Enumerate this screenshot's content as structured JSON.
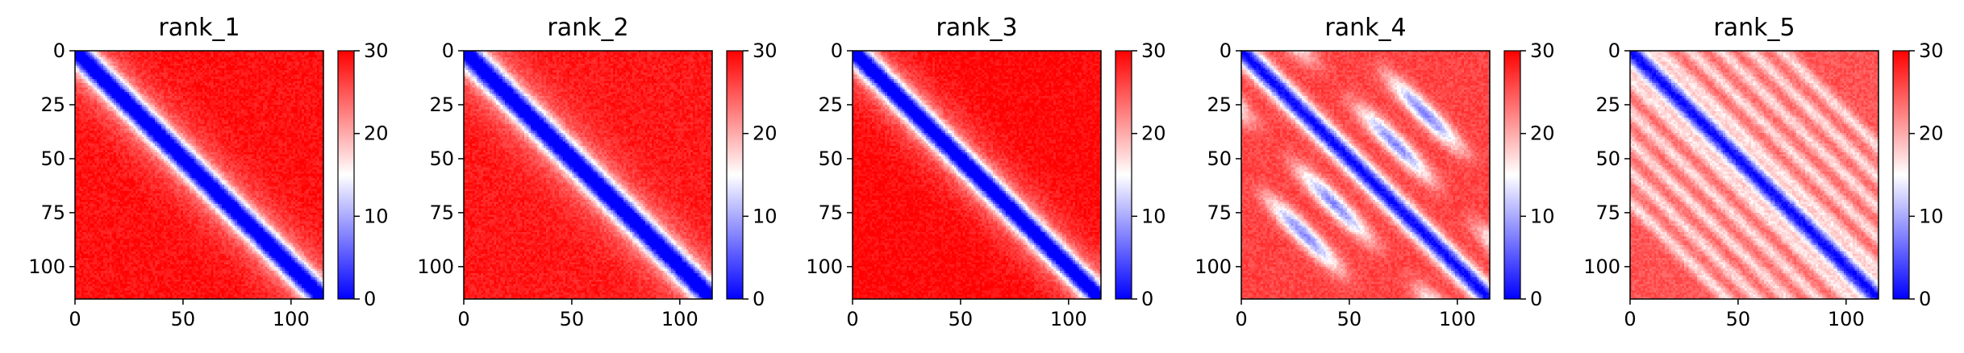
{
  "chart_data": [
    {
      "type": "heatmap",
      "title": "rank_1",
      "pattern": "single-band",
      "band_width": 5.2,
      "background_level": 29,
      "xticks": [
        0,
        50,
        100
      ],
      "yticks": [
        0,
        25,
        50,
        75,
        100
      ],
      "xlim": [
        0,
        115
      ],
      "ylim": [
        115,
        0
      ],
      "colorbar": {
        "cmap": "bwr",
        "range": [
          0,
          30
        ],
        "ticks": [
          0,
          10,
          20,
          30
        ]
      }
    },
    {
      "type": "heatmap",
      "title": "rank_2",
      "pattern": "single-band",
      "band_width": 5.4,
      "background_level": 28.5,
      "xticks": [
        0,
        50,
        100
      ],
      "yticks": [
        0,
        25,
        50,
        75,
        100
      ],
      "xlim": [
        0,
        115
      ],
      "ylim": [
        115,
        0
      ],
      "colorbar": {
        "cmap": "bwr",
        "range": [
          0,
          30
        ],
        "ticks": [
          0,
          10,
          20,
          30
        ]
      }
    },
    {
      "type": "heatmap",
      "title": "rank_3",
      "pattern": "single-band",
      "band_width": 5.0,
      "background_level": 29.5,
      "xticks": [
        0,
        50,
        100
      ],
      "yticks": [
        0,
        25,
        50,
        75,
        100
      ],
      "xlim": [
        0,
        115
      ],
      "ylim": [
        115,
        0
      ],
      "colorbar": {
        "cmap": "bwr",
        "range": [
          0,
          30
        ],
        "ticks": [
          0,
          10,
          20,
          30
        ]
      }
    },
    {
      "type": "heatmap",
      "title": "rank_4",
      "pattern": "multi-band",
      "band_width": 5.0,
      "background_level": 26,
      "xticks": [
        0,
        50,
        100
      ],
      "yticks": [
        0,
        25,
        50,
        75,
        100
      ],
      "xlim": [
        0,
        115
      ],
      "ylim": [
        115,
        0
      ],
      "colorbar": {
        "cmap": "bwr",
        "range": [
          0,
          30
        ],
        "ticks": [
          0,
          10,
          20,
          30
        ]
      }
    },
    {
      "type": "heatmap",
      "title": "rank_5",
      "pattern": "stripes",
      "band_width": 5.0,
      "background_level": 25,
      "xticks": [
        0,
        50,
        100
      ],
      "yticks": [
        0,
        25,
        50,
        75,
        100
      ],
      "xlim": [
        0,
        115
      ],
      "ylim": [
        115,
        0
      ],
      "colorbar": {
        "cmap": "bwr",
        "range": [
          0,
          30
        ],
        "ticks": [
          0,
          10,
          20,
          30
        ]
      }
    }
  ]
}
